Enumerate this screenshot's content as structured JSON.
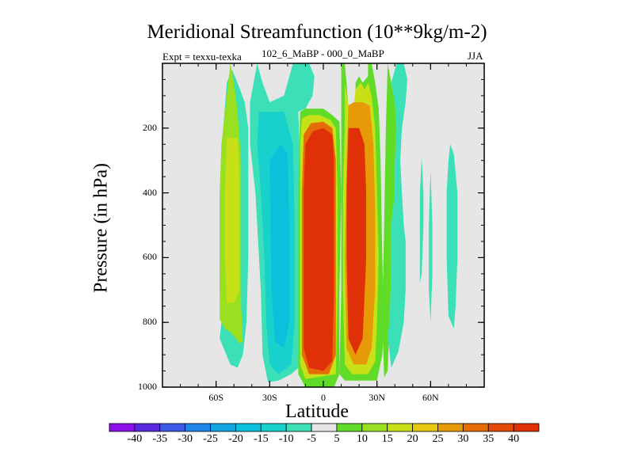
{
  "chart_data": {
    "type": "heatmap",
    "title": "Meridional Streamfunction (10**9kg/m-2)",
    "subtitle_left": "Expt = texxu-texka",
    "subtitle_center": "102_6_MaBP - 000_0_MaBP",
    "subtitle_right": "JJA",
    "xlabel": "Latitude",
    "ylabel": "Pressure (in hPa)",
    "xlim": [
      -90,
      90
    ],
    "ylim": [
      1000,
      0
    ],
    "x_ticks": [
      -60,
      -30,
      0,
      30,
      60
    ],
    "x_tick_labels": [
      "60S",
      "30S",
      "0",
      "30N",
      "60N"
    ],
    "y_ticks": [
      200,
      400,
      600,
      800,
      1000
    ],
    "y_tick_labels": [
      "200",
      "400",
      "600",
      "800",
      "1000"
    ],
    "colorbar": {
      "levels": [
        -40,
        -35,
        -30,
        -25,
        -20,
        -15,
        -10,
        -5,
        5,
        10,
        15,
        20,
        25,
        30,
        35,
        40
      ],
      "labels": [
        "-40",
        "-35",
        "-30",
        "-25",
        "-20",
        "-15",
        "-10",
        "-5",
        "5",
        "10",
        "15",
        "20",
        "25",
        "30",
        "35",
        "40"
      ],
      "colors": [
        "#8c10e8",
        "#5a28e0",
        "#3c58e6",
        "#1e86e6",
        "#12a6e0",
        "#0cc0dc",
        "#18d0cc",
        "#3ce0b8",
        "#e6e6e6",
        "#60dc28",
        "#98e020",
        "#c8e018",
        "#e6c810",
        "#e69a08",
        "#e66c08",
        "#e64a08",
        "#e03008"
      ]
    },
    "regions": [
      {
        "value": -5,
        "polygon": [
          [
            -51,
            20
          ],
          [
            -48,
            60
          ],
          [
            -44,
            120
          ],
          [
            -42,
            200
          ],
          [
            -42,
            400
          ],
          [
            -42,
            600
          ],
          [
            -43,
            800
          ],
          [
            -45,
            900
          ],
          [
            -48,
            940
          ],
          [
            -52,
            930
          ],
          [
            -55,
            890
          ],
          [
            -58,
            850
          ],
          [
            -57,
            800
          ],
          [
            -58,
            700
          ],
          [
            -58,
            400
          ],
          [
            -56,
            200
          ],
          [
            -54,
            60
          ]
        ]
      },
      {
        "value": 10,
        "polygon": [
          [
            -52,
            0
          ],
          [
            -50,
            60
          ],
          [
            -48,
            150
          ],
          [
            -46,
            300
          ],
          [
            -46,
            500
          ],
          [
            -46,
            750
          ],
          [
            -45,
            860
          ],
          [
            -47,
            865
          ],
          [
            -49,
            850
          ],
          [
            -52,
            830
          ],
          [
            -55,
            820
          ],
          [
            -58,
            790
          ],
          [
            -58,
            400
          ],
          [
            -57,
            250
          ],
          [
            -54,
            100
          ]
        ]
      },
      {
        "value": 15,
        "polygon": [
          [
            -54,
            230
          ],
          [
            -48,
            230
          ],
          [
            -47,
            350
          ],
          [
            -47,
            500
          ],
          [
            -47,
            700
          ],
          [
            -50,
            740
          ],
          [
            -54,
            740
          ],
          [
            -55,
            600
          ],
          [
            -55,
            400
          ]
        ]
      },
      {
        "value": -5,
        "polygon": [
          [
            -37,
            0
          ],
          [
            -34,
            60
          ],
          [
            -30,
            120
          ],
          [
            -22,
            100
          ],
          [
            -17,
            0
          ],
          [
            -8,
            0
          ],
          [
            -5,
            40
          ],
          [
            -6,
            100
          ],
          [
            -10,
            140
          ],
          [
            -14,
            150
          ],
          [
            -13,
            300
          ],
          [
            -14,
            600
          ],
          [
            -13,
            850
          ],
          [
            -14,
            940
          ],
          [
            -18,
            960
          ],
          [
            -25,
            980
          ],
          [
            -31,
            985
          ],
          [
            -34,
            900
          ],
          [
            -35,
            700
          ],
          [
            -38,
            400
          ],
          [
            -41,
            250
          ],
          [
            -41,
            120
          ],
          [
            -39,
            60
          ]
        ]
      },
      {
        "value": -10,
        "polygon": [
          [
            -36,
            150
          ],
          [
            -28,
            150
          ],
          [
            -22,
            150
          ],
          [
            -17,
            250
          ],
          [
            -16,
            500
          ],
          [
            -16,
            800
          ],
          [
            -18,
            930
          ],
          [
            -25,
            960
          ],
          [
            -30,
            930
          ],
          [
            -32,
            800
          ],
          [
            -33,
            600
          ],
          [
            -35,
            400
          ],
          [
            -37,
            250
          ]
        ]
      },
      {
        "value": -15,
        "polygon": [
          [
            -30,
            300
          ],
          [
            -24,
            250
          ],
          [
            -20,
            280
          ],
          [
            -19,
            500
          ],
          [
            -19,
            800
          ],
          [
            -22,
            880
          ],
          [
            -27,
            860
          ],
          [
            -29,
            700
          ]
        ]
      },
      {
        "value": 5,
        "polygon": [
          [
            -13,
            150
          ],
          [
            -10,
            140
          ],
          [
            -5,
            140
          ],
          [
            0,
            140
          ],
          [
            5,
            160
          ],
          [
            9,
            180
          ],
          [
            10,
            400
          ],
          [
            9,
            700
          ],
          [
            9,
            960
          ],
          [
            6,
            1000
          ],
          [
            -10,
            1000
          ],
          [
            -14,
            960
          ],
          [
            -14,
            700
          ],
          [
            -14,
            400
          ]
        ]
      },
      {
        "value": 15,
        "polygon": [
          [
            -12,
            170
          ],
          [
            -8,
            160
          ],
          [
            -2,
            160
          ],
          [
            4,
            175
          ],
          [
            7,
            200
          ],
          [
            8,
            400
          ],
          [
            8,
            700
          ],
          [
            7,
            960
          ],
          [
            -10,
            975
          ],
          [
            -13,
            930
          ],
          [
            -13,
            700
          ],
          [
            -13,
            400
          ],
          [
            -13,
            250
          ]
        ]
      },
      {
        "value": 30,
        "polygon": [
          [
            -11,
            220
          ],
          [
            -7,
            185
          ],
          [
            0,
            180
          ],
          [
            5,
            200
          ],
          [
            7,
            300
          ],
          [
            7,
            600
          ],
          [
            7,
            900
          ],
          [
            3,
            960
          ],
          [
            -8,
            960
          ],
          [
            -12,
            900
          ],
          [
            -12,
            700
          ],
          [
            -12,
            400
          ]
        ]
      },
      {
        "value": 40,
        "polygon": [
          [
            -10,
            250
          ],
          [
            -6,
            210
          ],
          [
            0,
            200
          ],
          [
            5,
            220
          ],
          [
            6,
            300
          ],
          [
            6,
            700
          ],
          [
            5,
            920
          ],
          [
            0,
            950
          ],
          [
            -8,
            940
          ],
          [
            -11,
            880
          ],
          [
            -11,
            600
          ],
          [
            -11,
            400
          ]
        ]
      },
      {
        "value": 5,
        "polygon": [
          [
            10,
            0
          ],
          [
            12,
            0
          ],
          [
            13,
            60
          ],
          [
            14,
            140
          ],
          [
            16,
            160
          ],
          [
            18,
            120
          ],
          [
            18,
            60
          ],
          [
            20,
            40
          ],
          [
            22,
            60
          ],
          [
            25,
            40
          ],
          [
            25,
            0
          ],
          [
            27,
            0
          ],
          [
            29,
            60
          ],
          [
            31,
            140
          ],
          [
            32,
            300
          ],
          [
            33,
            600
          ],
          [
            34,
            800
          ],
          [
            33,
            900
          ],
          [
            30,
            980
          ],
          [
            12,
            980
          ],
          [
            9,
            960
          ],
          [
            10,
            700
          ],
          [
            10,
            400
          ]
        ]
      },
      {
        "value": 15,
        "polygon": [
          [
            12,
            60
          ],
          [
            14,
            130
          ],
          [
            17,
            140
          ],
          [
            18,
            80
          ],
          [
            21,
            60
          ],
          [
            23,
            80
          ],
          [
            25,
            60
          ],
          [
            27,
            100
          ],
          [
            29,
            200
          ],
          [
            30,
            400
          ],
          [
            31,
            600
          ],
          [
            30,
            800
          ],
          [
            29,
            920
          ],
          [
            25,
            960
          ],
          [
            16,
            960
          ],
          [
            12,
            930
          ],
          [
            11,
            700
          ],
          [
            11,
            400
          ],
          [
            12,
            200
          ]
        ]
      },
      {
        "value": 25,
        "polygon": [
          [
            14,
            130
          ],
          [
            17,
            120
          ],
          [
            22,
            120
          ],
          [
            26,
            130
          ],
          [
            28,
            250
          ],
          [
            29,
            450
          ],
          [
            29,
            700
          ],
          [
            27,
            880
          ],
          [
            24,
            930
          ],
          [
            17,
            930
          ],
          [
            13,
            880
          ],
          [
            12,
            600
          ],
          [
            13,
            300
          ]
        ]
      },
      {
        "value": 40,
        "polygon": [
          [
            14,
            200
          ],
          [
            20,
            200
          ],
          [
            23,
            250
          ],
          [
            24,
            400
          ],
          [
            24,
            600
          ],
          [
            22,
            850
          ],
          [
            18,
            900
          ],
          [
            14,
            850
          ],
          [
            13,
            600
          ],
          [
            13,
            400
          ]
        ]
      },
      {
        "value": 5,
        "polygon": [
          [
            36,
            0
          ],
          [
            40,
            120
          ],
          [
            41,
            200
          ],
          [
            40,
            300
          ],
          [
            40,
            400
          ],
          [
            38,
            500
          ],
          [
            38,
            650
          ],
          [
            37,
            800
          ],
          [
            36,
            950
          ],
          [
            34,
            970
          ],
          [
            33,
            800
          ],
          [
            34,
            500
          ],
          [
            35,
            200
          ]
        ]
      },
      {
        "value": -5,
        "polygon": [
          [
            45,
            0
          ],
          [
            47,
            50
          ],
          [
            46,
            120
          ],
          [
            44,
            200
          ],
          [
            43,
            300
          ],
          [
            44,
            400
          ],
          [
            45,
            500
          ],
          [
            46,
            550
          ],
          [
            46,
            700
          ],
          [
            45,
            800
          ],
          [
            42,
            890
          ],
          [
            38,
            940
          ],
          [
            36,
            840
          ],
          [
            37,
            800
          ],
          [
            38,
            650
          ],
          [
            38,
            500
          ],
          [
            40,
            400
          ],
          [
            40,
            300
          ],
          [
            41,
            200
          ],
          [
            40,
            120
          ],
          [
            38,
            60
          ],
          [
            41,
            0
          ]
        ]
      },
      {
        "value": -5,
        "polygon": [
          [
            55,
            290
          ],
          [
            56,
            400
          ],
          [
            56,
            500
          ],
          [
            55,
            650
          ],
          [
            54,
            680
          ],
          [
            54,
            500
          ],
          [
            54,
            400
          ]
        ]
      },
      {
        "value": -5,
        "polygon": [
          [
            60,
            330
          ],
          [
            61,
            500
          ],
          [
            61,
            650
          ],
          [
            60,
            800
          ],
          [
            59,
            700
          ],
          [
            59,
            500
          ]
        ]
      },
      {
        "value": -5,
        "polygon": [
          [
            71,
            250
          ],
          [
            73,
            280
          ],
          [
            75,
            400
          ],
          [
            75,
            600
          ],
          [
            74,
            750
          ],
          [
            73,
            820
          ],
          [
            70,
            780
          ],
          [
            69,
            600
          ],
          [
            69,
            400
          ],
          [
            70,
            300
          ]
        ]
      }
    ]
  }
}
